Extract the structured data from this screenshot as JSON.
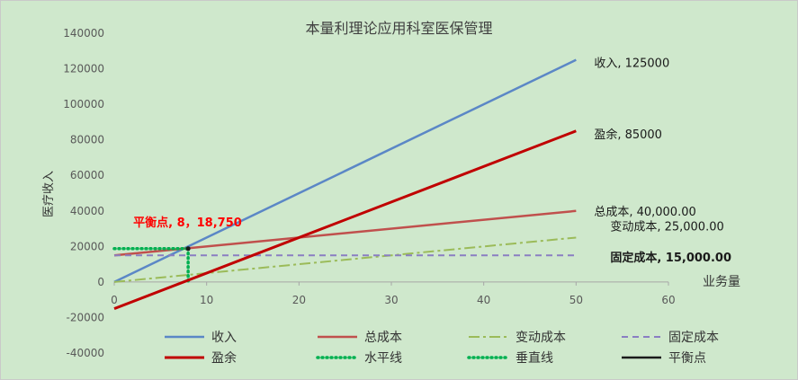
{
  "chart_data": {
    "type": "line",
    "title": "本量利理论应用科室医保管理",
    "xlabel": "业务量",
    "ylabel": "医疗收入",
    "xlim": [
      0,
      60
    ],
    "ylim": [
      -40000,
      140000
    ],
    "x_ticks": [
      "0",
      "10",
      "20",
      "30",
      "40",
      "50",
      "60"
    ],
    "y_ticks": [
      "-40000",
      "-20000",
      "0",
      "20000",
      "40000",
      "60000",
      "80000",
      "100000",
      "120000",
      "140000"
    ],
    "grid": false,
    "legend_position": "bottom",
    "series": [
      {
        "name": "收入",
        "color": "#5b87c6",
        "style": "solid",
        "x": [
          0,
          50
        ],
        "y": [
          0,
          125000
        ],
        "end_label": "收入, 125000",
        "end_label_bold": false
      },
      {
        "name": "总成本",
        "color": "#c0504d",
        "style": "solid",
        "x": [
          0,
          50
        ],
        "y": [
          15000,
          40000
        ],
        "end_label": "总成本, 40,000.00",
        "end_label_bold": false
      },
      {
        "name": "变动成本",
        "color": "#9bbb59",
        "style": "dashdot",
        "x": [
          0,
          50
        ],
        "y": [
          0,
          25000
        ],
        "end_label": "变动成本, 25,000.00",
        "end_label_bold": false
      },
      {
        "name": "固定成本",
        "color": "#8a7ec2",
        "style": "dashed",
        "x": [
          0,
          50
        ],
        "y": [
          15000,
          15000
        ],
        "end_label": "固定成本, 15,000.00",
        "end_label_bold": true
      },
      {
        "name": "盈余",
        "color": "#c00000",
        "style": "solid-thick",
        "x": [
          0,
          50
        ],
        "y": [
          -15000,
          85000
        ],
        "end_label": "盈余, 85000",
        "end_label_bold": false
      },
      {
        "name": "水平线",
        "color": "#00b050",
        "style": "dotted",
        "x": [
          0,
          8
        ],
        "y": [
          18750,
          18750
        ]
      },
      {
        "name": "垂直线",
        "color": "#00b050",
        "style": "dotted",
        "x": [
          8,
          8
        ],
        "y": [
          18750,
          0
        ]
      },
      {
        "name": "平衡点",
        "color": "#1a1a1a",
        "style": "solid",
        "x": [
          8
        ],
        "y": [
          18750
        ]
      }
    ],
    "annotations": [
      {
        "text": "平衡点, 8，18,750",
        "x": 8,
        "y": 18750,
        "color": "#ff0000"
      }
    ]
  }
}
